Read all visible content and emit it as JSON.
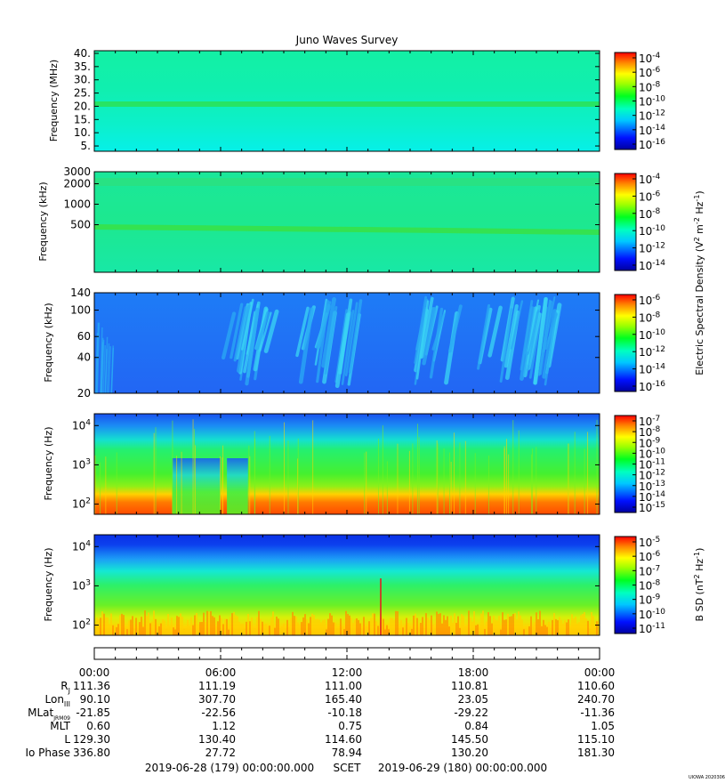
{
  "title": "Juno Waves Survey",
  "footer": {
    "start": "2019-06-28 (179) 00:00:00.000",
    "label": "SCET",
    "end": "2019-06-29 (180) 00:00:00.000",
    "stamp": "UIOWA 2020306"
  },
  "shared_colorbar_label": "Electric Spectral Density (V² m⁻² Hz⁻¹)",
  "chart_data": [
    {
      "type": "heatmap",
      "title": "Juno Waves Survey",
      "ylabel": "Frequency (MHz)",
      "y_scale": "linear",
      "ylim": [
        3,
        41
      ],
      "y_ticks": [
        "40.",
        "35.",
        "30.",
        "25.",
        "20.",
        "15.",
        "10.",
        "5."
      ],
      "colorbar": {
        "ticks_exp": [
          -4,
          -6,
          -8,
          -10,
          -12,
          -14,
          -16
        ]
      },
      "features": [
        {
          "band": "emission line",
          "value": 21
        }
      ]
    },
    {
      "type": "heatmap",
      "ylabel": "Frequency (kHz)",
      "y_scale": "log",
      "ylim": [
        100,
        3000
      ],
      "y_ticks": [
        "3000",
        "2000",
        "1000",
        "500"
      ],
      "colorbar": {
        "ticks_exp": [
          -4,
          -6,
          -8,
          -10,
          -12,
          -14
        ],
        "label": "shared"
      },
      "features": [
        {
          "band": "emission band",
          "value": 500
        },
        {
          "band": "emission band",
          "value": 2100
        }
      ]
    },
    {
      "type": "heatmap",
      "ylabel": "Frequency (kHz)",
      "y_scale": "log",
      "ylim": [
        20,
        140
      ],
      "y_ticks": [
        "140",
        "100",
        "60",
        "40",
        "20"
      ],
      "colorbar": {
        "ticks_exp": [
          -6,
          -8,
          -10,
          -12,
          -14,
          -16
        ]
      },
      "bursts_hours": [
        [
          6.3,
          8.5
        ],
        [
          9.8,
          11.2
        ],
        [
          11.4,
          12.4
        ],
        [
          15.4,
          17.2
        ],
        [
          18.3,
          21.8
        ]
      ]
    },
    {
      "type": "heatmap",
      "ylabel": "Frequency (Hz)",
      "y_scale": "log",
      "ylim": [
        55,
        20000
      ],
      "y_ticks": [
        "10^4",
        "10^3",
        "10^2"
      ],
      "colorbar": {
        "ticks_exp": [
          -7,
          -8,
          -9,
          -10,
          -11,
          -12,
          -13,
          -14,
          -15
        ]
      },
      "quiet_hours": [
        [
          3.7,
          6.0
        ],
        [
          6.3,
          7.3
        ]
      ]
    },
    {
      "type": "heatmap",
      "ylabel": "Frequency (Hz)",
      "y_scale": "log",
      "ylim": [
        55,
        20000
      ],
      "y_ticks": [
        "10^4",
        "10^3",
        "10^2"
      ],
      "colorbar": {
        "ticks_exp": [
          -5,
          -6,
          -7,
          -8,
          -9,
          -10,
          -11
        ],
        "label": "B SD (nT² Hz⁻¹)"
      }
    }
  ],
  "time_axis": {
    "ticks": [
      "00:00",
      "06:00",
      "12:00",
      "18:00",
      "00:00"
    ],
    "rows": [
      {
        "label": "R",
        "sub": "J",
        "values": [
          "111.36",
          "111.19",
          "111.00",
          "110.81",
          "110.60"
        ]
      },
      {
        "label": "Lon",
        "sub": "III",
        "values": [
          "90.10",
          "307.70",
          "165.40",
          "23.05",
          "240.70"
        ]
      },
      {
        "label": "MLat",
        "sub": "JRM09",
        "values": [
          "-21.85",
          "-22.56",
          "-10.18",
          "-29.22",
          "-11.36"
        ]
      },
      {
        "label": "MLT",
        "sub": "",
        "values": [
          "0.60",
          "1.12",
          "0.75",
          "0.84",
          "1.05"
        ]
      },
      {
        "label": "L",
        "sub": "",
        "values": [
          "129.30",
          "130.40",
          "114.60",
          "145.50",
          "115.10"
        ]
      },
      {
        "label": "Io Phase",
        "sub": "",
        "values": [
          "336.80",
          "27.72",
          "78.94",
          "130.20",
          "181.30"
        ]
      }
    ]
  }
}
